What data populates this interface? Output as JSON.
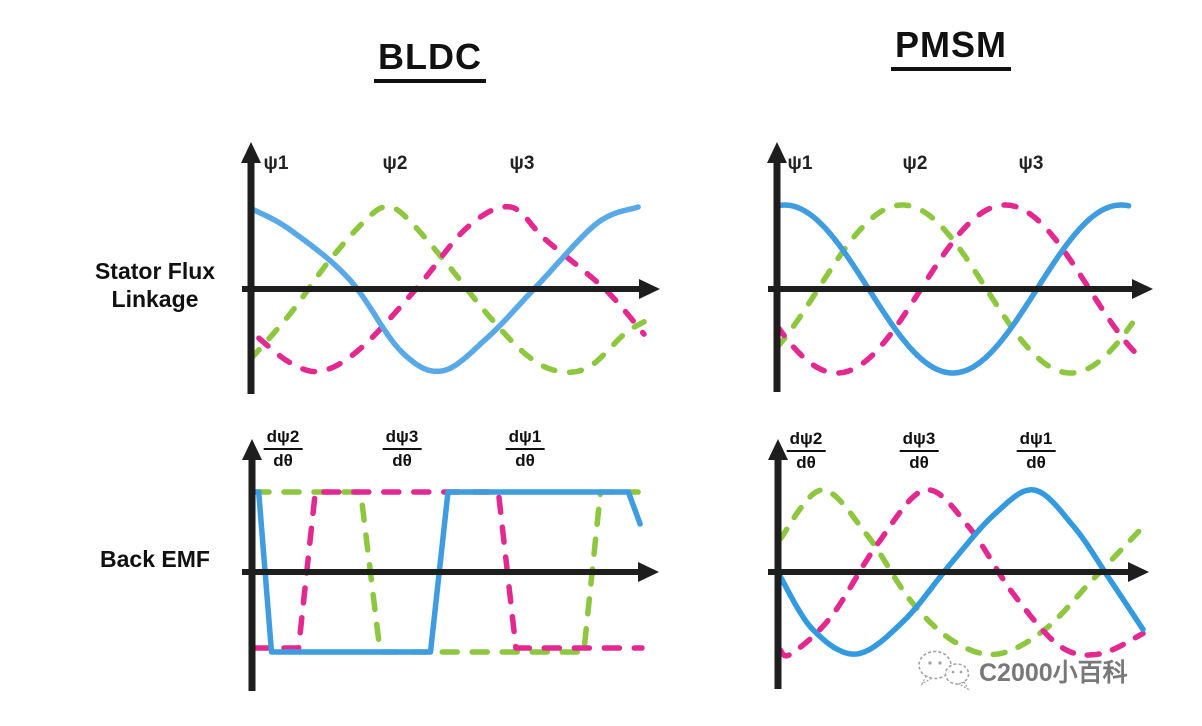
{
  "figure": {
    "kind": "BLDC vs PMSM waveform comparison"
  },
  "titles": {
    "left": "BLDC",
    "right": "PMSM"
  },
  "row_labels": {
    "flux_line1": "Stator Flux",
    "flux_line2": "Linkage",
    "emf": "Back EMF"
  },
  "colors": {
    "axis": "#1E1E1E",
    "text": "#111111",
    "blue": "#459FE2",
    "green": "#8DC63F",
    "pink": "#E3288F",
    "watermark_gray": "#6E6E6E"
  },
  "watermark": {
    "text": "C2000小百科",
    "icon": "wechat-chat-bubbles"
  },
  "panels": {
    "bldc_flux": {
      "column": "BLDC",
      "row": "Stator Flux Linkage",
      "waveform_style": "trapezoidal-triangular",
      "labels": [
        {
          "text": "ψ1"
        },
        {
          "text": "ψ2"
        },
        {
          "text": "ψ3"
        }
      ],
      "series": [
        {
          "key": "psi2",
          "name": "ψ2",
          "color": "#8DC63F",
          "dash": "12 15",
          "type": "smooth",
          "points": [
            [
              0,
              -0.85
            ],
            [
              0.1,
              -0.3
            ],
            [
              0.2,
              0.35
            ],
            [
              0.3,
              0.88
            ],
            [
              0.35,
              1
            ],
            [
              0.4,
              0.85
            ],
            [
              0.5,
              0.3
            ],
            [
              0.6,
              -0.3
            ],
            [
              0.7,
              -0.8
            ],
            [
              0.78,
              -1
            ],
            [
              0.86,
              -0.95
            ],
            [
              0.95,
              -0.55
            ],
            [
              1,
              -0.4
            ]
          ]
        },
        {
          "key": "psi3",
          "name": "ψ3",
          "color": "#E3288F",
          "dash": "12 15",
          "type": "smooth",
          "points": [
            [
              0.02,
              -0.6
            ],
            [
              0.1,
              -0.9
            ],
            [
              0.18,
              -1
            ],
            [
              0.28,
              -0.72
            ],
            [
              0.42,
              0
            ],
            [
              0.55,
              0.75
            ],
            [
              0.66,
              1
            ],
            [
              0.75,
              0.6
            ],
            [
              0.9,
              0
            ],
            [
              1,
              -0.55
            ]
          ]
        },
        {
          "key": "psi1",
          "name": "ψ1",
          "color": "#59A9E8",
          "dash": null,
          "type": "smooth",
          "points": [
            [
              0.005,
              0.97
            ],
            [
              0.1,
              0.72
            ],
            [
              0.25,
              0.12
            ],
            [
              0.38,
              -0.75
            ],
            [
              0.485,
              -1
            ],
            [
              0.6,
              -0.6
            ],
            [
              0.73,
              0.05
            ],
            [
              0.88,
              0.8
            ],
            [
              0.985,
              1
            ]
          ]
        }
      ]
    },
    "pmsm_flux": {
      "column": "PMSM",
      "row": "Stator Flux Linkage",
      "waveform_style": "sinusoidal",
      "labels": [
        {
          "text": "ψ1"
        },
        {
          "text": "ψ2"
        },
        {
          "text": "ψ3"
        }
      ],
      "series": [
        {
          "key": "psi2",
          "name": "ψ2",
          "color": "#8DC63F",
          "dash": "12 15",
          "type": "sine",
          "peak": 0.335,
          "period": 0.9,
          "tmax": 0.95
        },
        {
          "key": "psi3",
          "name": "ψ3",
          "color": "#E3288F",
          "dash": "12 15",
          "type": "sine",
          "peak": 0.61,
          "period": 0.9,
          "tmax": 0.97
        },
        {
          "key": "psi1",
          "name": "ψ1",
          "color": "#3E9CDF",
          "dash": null,
          "type": "sine",
          "peak": 0.02,
          "period": 0.9,
          "tmax": 0.94
        }
      ]
    },
    "bldc_emf": {
      "column": "BLDC",
      "row": "Back EMF",
      "waveform_style": "trapezoidal",
      "labels": [
        {
          "num": "dψ2",
          "den": "dθ"
        },
        {
          "num": "dψ3",
          "den": "dθ"
        },
        {
          "num": "dψ1",
          "den": "dθ"
        }
      ],
      "series": [
        {
          "key": "dpsi2",
          "name": "dψ2/dθ",
          "color": "#8DC63F",
          "dash": "15 15",
          "type": "poly",
          "points": [
            [
              0,
              1
            ],
            [
              0.275,
              1
            ],
            [
              0.325,
              -1
            ],
            [
              0.85,
              -1
            ],
            [
              0.893,
              1
            ],
            [
              0.99,
              1
            ]
          ]
        },
        {
          "key": "dpsi3",
          "name": "dψ3/dθ",
          "color": "#E3288F",
          "dash": "15 15",
          "type": "poly",
          "points": [
            [
              0,
              -0.95
            ],
            [
              0.115,
              -0.95
            ],
            [
              0.158,
              1
            ],
            [
              0.63,
              1
            ],
            [
              0.675,
              -0.95
            ],
            [
              1,
              -0.95
            ]
          ]
        },
        {
          "key": "dpsi1",
          "name": "dψ1/dθ",
          "color": "#3F9CE0",
          "dash": null,
          "type": "poly",
          "points": [
            [
              0.004,
              1
            ],
            [
              0.012,
              1
            ],
            [
              0.045,
              -1
            ],
            [
              0.455,
              -1
            ],
            [
              0.5,
              1
            ],
            [
              0.965,
              1
            ],
            [
              0.995,
              0.6
            ]
          ]
        }
      ]
    },
    "pmsm_emf": {
      "column": "PMSM",
      "row": "Back EMF",
      "waveform_style": "sinusoidal",
      "labels": [
        {
          "num": "dψ2",
          "den": "dθ"
        },
        {
          "num": "dψ3",
          "den": "dθ"
        },
        {
          "num": "dψ1",
          "den": "dθ"
        }
      ],
      "series": [
        {
          "key": "dpsi2",
          "name": "dψ2/dθ",
          "color": "#8DC63F",
          "dash": "12 14",
          "type": "smooth",
          "points": [
            [
              0,
              0.4
            ],
            [
              0.115,
              1
            ],
            [
              0.24,
              0.45
            ],
            [
              0.36,
              -0.35
            ],
            [
              0.48,
              -0.85
            ],
            [
              0.6,
              -1
            ],
            [
              0.73,
              -0.7
            ],
            [
              0.86,
              -0.1
            ],
            [
              1,
              0.55
            ]
          ]
        },
        {
          "key": "dpsi3",
          "name": "dψ3/dθ",
          "color": "#E3288F",
          "dash": "12 14",
          "type": "smooth",
          "points": [
            [
              0,
              -0.95
            ],
            [
              0.03,
              -1
            ],
            [
              0.14,
              -0.55
            ],
            [
              0.27,
              0.35
            ],
            [
              0.4,
              1
            ],
            [
              0.52,
              0.55
            ],
            [
              0.64,
              -0.25
            ],
            [
              0.77,
              -0.9
            ],
            [
              0.88,
              -1
            ],
            [
              1,
              -0.75
            ]
          ]
        },
        {
          "key": "dpsi1",
          "name": "dψ1/dθ",
          "color": "#339ADF",
          "dash": null,
          "type": "smooth",
          "points": [
            [
              0,
              -0.05
            ],
            [
              0.09,
              -0.7
            ],
            [
              0.21,
              -1
            ],
            [
              0.34,
              -0.6
            ],
            [
              0.47,
              0.1
            ],
            [
              0.59,
              0.7
            ],
            [
              0.7,
              1
            ],
            [
              0.81,
              0.55
            ],
            [
              0.91,
              -0.1
            ],
            [
              1,
              -0.7
            ]
          ]
        }
      ]
    }
  }
}
